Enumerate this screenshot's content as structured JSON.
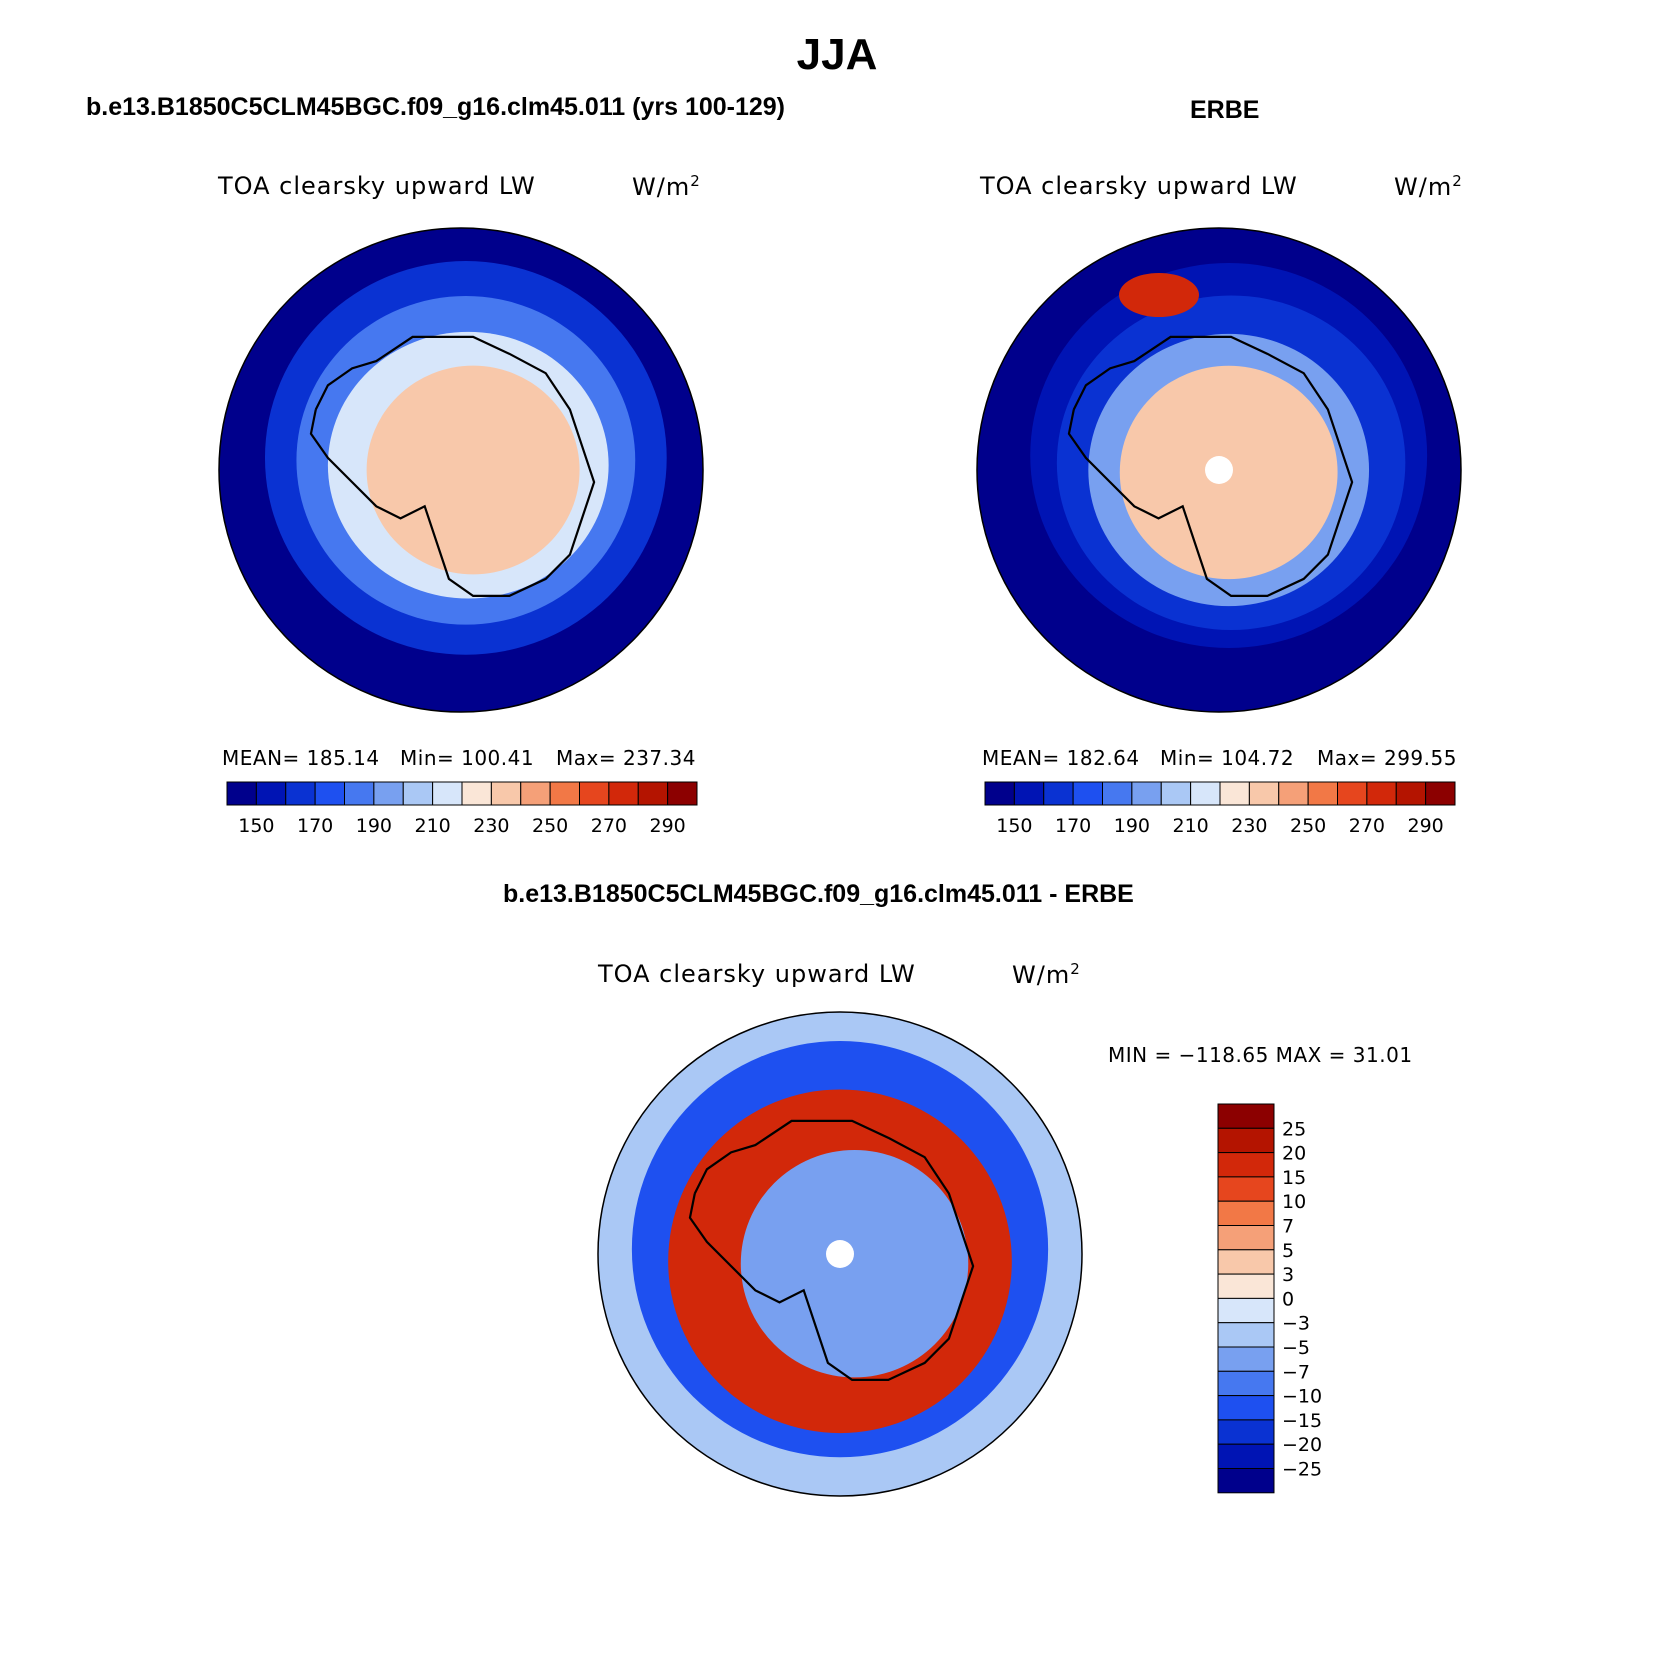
{
  "title": "JJA",
  "panels": [
    {
      "header": "b.e13.B1850C5CLM45BGC.f09_g16.clm45.011 (yrs 100-129)",
      "variable": "TOA clearsky upward LW",
      "units": "W/m",
      "units_exp": "2",
      "stats": {
        "mean": "MEAN= 185.14",
        "min": "Min= 100.41",
        "max": "Max= 237.34"
      }
    },
    {
      "header": "ERBE",
      "variable": "TOA clearsky upward LW",
      "units": "W/m",
      "units_exp": "2",
      "stats": {
        "mean": "MEAN= 182.64",
        "min": "Min= 104.72",
        "max": "Max= 299.55"
      }
    },
    {
      "header": "b.e13.B1850C5CLM45BGC.f09_g16.clm45.011 - ERBE",
      "variable": "TOA clearsky upward LW",
      "units": "W/m",
      "units_exp": "2",
      "stats": {
        "minmax": "MIN = −118.65 MAX =   31.01"
      }
    }
  ],
  "chart_data": [
    {
      "type": "heatmap",
      "projection": "south-polar-stereographic",
      "title": "TOA clearsky upward LW",
      "units": "W/m2",
      "mean": 185.14,
      "min": 100.41,
      "max": 237.34,
      "colorbar": {
        "levels": [
          140,
          150,
          160,
          170,
          180,
          190,
          200,
          210,
          220,
          230,
          240,
          250,
          260,
          270,
          280,
          290
        ],
        "tick_labels": [
          "150",
          "170",
          "190",
          "210",
          "230",
          "250",
          "270",
          "290"
        ],
        "colors": [
          "#00008c",
          "#0014b4",
          "#0a32d2",
          "#1e50f0",
          "#4678f0",
          "#78a0f0",
          "#aac8f5",
          "#d7e6fa",
          "#fae6d7",
          "#f8c8aa",
          "#f5a078",
          "#f27846",
          "#e6461e",
          "#d2280a",
          "#b41400",
          "#8c0000"
        ]
      },
      "zones": [
        {
          "region": "Antarctic interior",
          "value": 140
        },
        {
          "region": "Antarctic coast",
          "value": 165
        },
        {
          "region": "Sea ice zone",
          "value": 185
        },
        {
          "region": "Sea ice edge",
          "value": 210
        },
        {
          "region": "Southern Ocean",
          "value": 232
        }
      ]
    },
    {
      "type": "heatmap",
      "projection": "south-polar-stereographic",
      "title": "TOA clearsky upward LW",
      "units": "W/m2",
      "mean": 182.64,
      "min": 104.72,
      "max": 299.55,
      "colorbar": {
        "levels": [
          140,
          150,
          160,
          170,
          180,
          190,
          200,
          210,
          220,
          230,
          240,
          250,
          260,
          270,
          280,
          290
        ],
        "tick_labels": [
          "150",
          "170",
          "190",
          "210",
          "230",
          "250",
          "270",
          "290"
        ],
        "colors": [
          "#00008c",
          "#0014b4",
          "#0a32d2",
          "#1e50f0",
          "#4678f0",
          "#78a0f0",
          "#aac8f5",
          "#d7e6fa",
          "#fae6d7",
          "#f8c8aa",
          "#f5a078",
          "#f27846",
          "#e6461e",
          "#d2280a",
          "#b41400",
          "#8c0000"
        ]
      },
      "zones": [
        {
          "region": "Antarctic interior",
          "value": 140
        },
        {
          "region": "Antarctic coast",
          "value": 150
        },
        {
          "region": "Sea ice zone",
          "value": 165
        },
        {
          "region": "Sea ice edge",
          "value": 190
        },
        {
          "region": "Southern Ocean",
          "value": 232
        },
        {
          "region": "Weddell anomaly",
          "value": 270
        }
      ]
    },
    {
      "type": "heatmap",
      "projection": "south-polar-stereographic",
      "title": "TOA clearsky upward LW",
      "units": "W/m2",
      "min": -118.65,
      "max": 31.01,
      "colorbar": {
        "levels": [
          -30,
          -25,
          -20,
          -15,
          -10,
          -7,
          -5,
          -3,
          0,
          3,
          5,
          7,
          10,
          15,
          20,
          25
        ],
        "tick_labels": [
          "25",
          "20",
          "15",
          "10",
          "7",
          "5",
          "3",
          "0",
          "−3",
          "−5",
          "−7",
          "−10",
          "−15",
          "−20",
          "−25"
        ],
        "colors": [
          "#00008c",
          "#0014b4",
          "#0a32d2",
          "#1e50f0",
          "#4678f0",
          "#78a0f0",
          "#aac8f5",
          "#d7e6fa",
          "#fae6d7",
          "#f8c8aa",
          "#f5a078",
          "#f27846",
          "#e6461e",
          "#d2280a",
          "#b41400",
          "#8c0000"
        ]
      },
      "zones": [
        {
          "region": "Southern Ocean",
          "value": -4
        },
        {
          "region": "Sea ice zone",
          "value": -12
        },
        {
          "region": "Antarctic coastal ring",
          "value": 18
        },
        {
          "region": "Antarctic interior",
          "value": -6
        }
      ]
    }
  ]
}
